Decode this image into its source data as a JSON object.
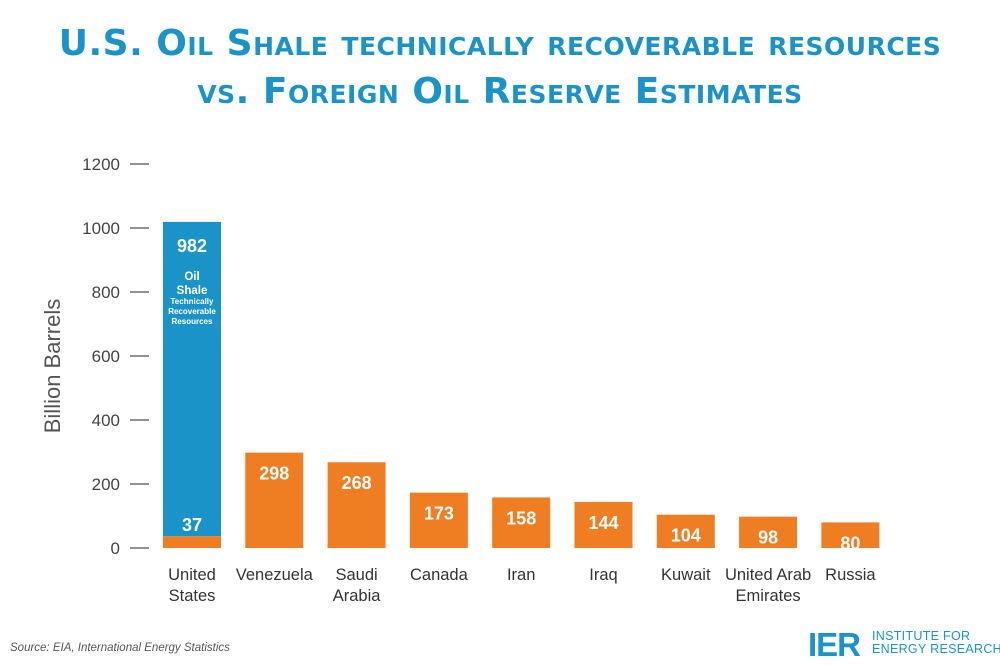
{
  "title_line1": "U.S. Oil Shale technically recoverable resources",
  "title_line2": "vs. Foreign Oil Reserve Estimates",
  "source": "Source: EIA, International Energy Statistics",
  "logo": {
    "mark": "IER",
    "line1": "INSTITUTE FOR",
    "line2": "ENERGY RESEARCH"
  },
  "colors": {
    "title": "#1a93c8",
    "oil_shale": "#1a93c8",
    "reserves": "#ef7d22",
    "axis": "#555555"
  },
  "chart_data": {
    "type": "bar",
    "ylabel": "Billion Barrels",
    "ylim": [
      0,
      1200
    ],
    "yticks": [
      0,
      200,
      400,
      600,
      800,
      1000,
      1200
    ],
    "categories": [
      [
        "United",
        "States"
      ],
      [
        "Venezuela"
      ],
      [
        "Saudi",
        "Arabia"
      ],
      [
        "Canada"
      ],
      [
        "Iran"
      ],
      [
        "Iraq"
      ],
      [
        "Kuwait"
      ],
      [
        "United Arab",
        "Emirates"
      ],
      [
        "Russia"
      ]
    ],
    "series": [
      {
        "values": [
          37,
          298,
          268,
          173,
          158,
          144,
          104,
          98,
          80
        ],
        "labels": [
          "37",
          "298",
          "268",
          "173",
          "158",
          "144",
          "104",
          "98",
          "80"
        ]
      },
      {
        "values": [
          982,
          0,
          0,
          0,
          0,
          0,
          0,
          0,
          0
        ],
        "labels": [
          "982",
          "",
          "",
          "",
          "",
          "",
          "",
          "",
          ""
        ]
      }
    ],
    "annotation": {
      "main": [
        "Oil",
        "Shale"
      ],
      "sub": [
        "Technically",
        "Recoverable",
        "Resources"
      ]
    }
  }
}
